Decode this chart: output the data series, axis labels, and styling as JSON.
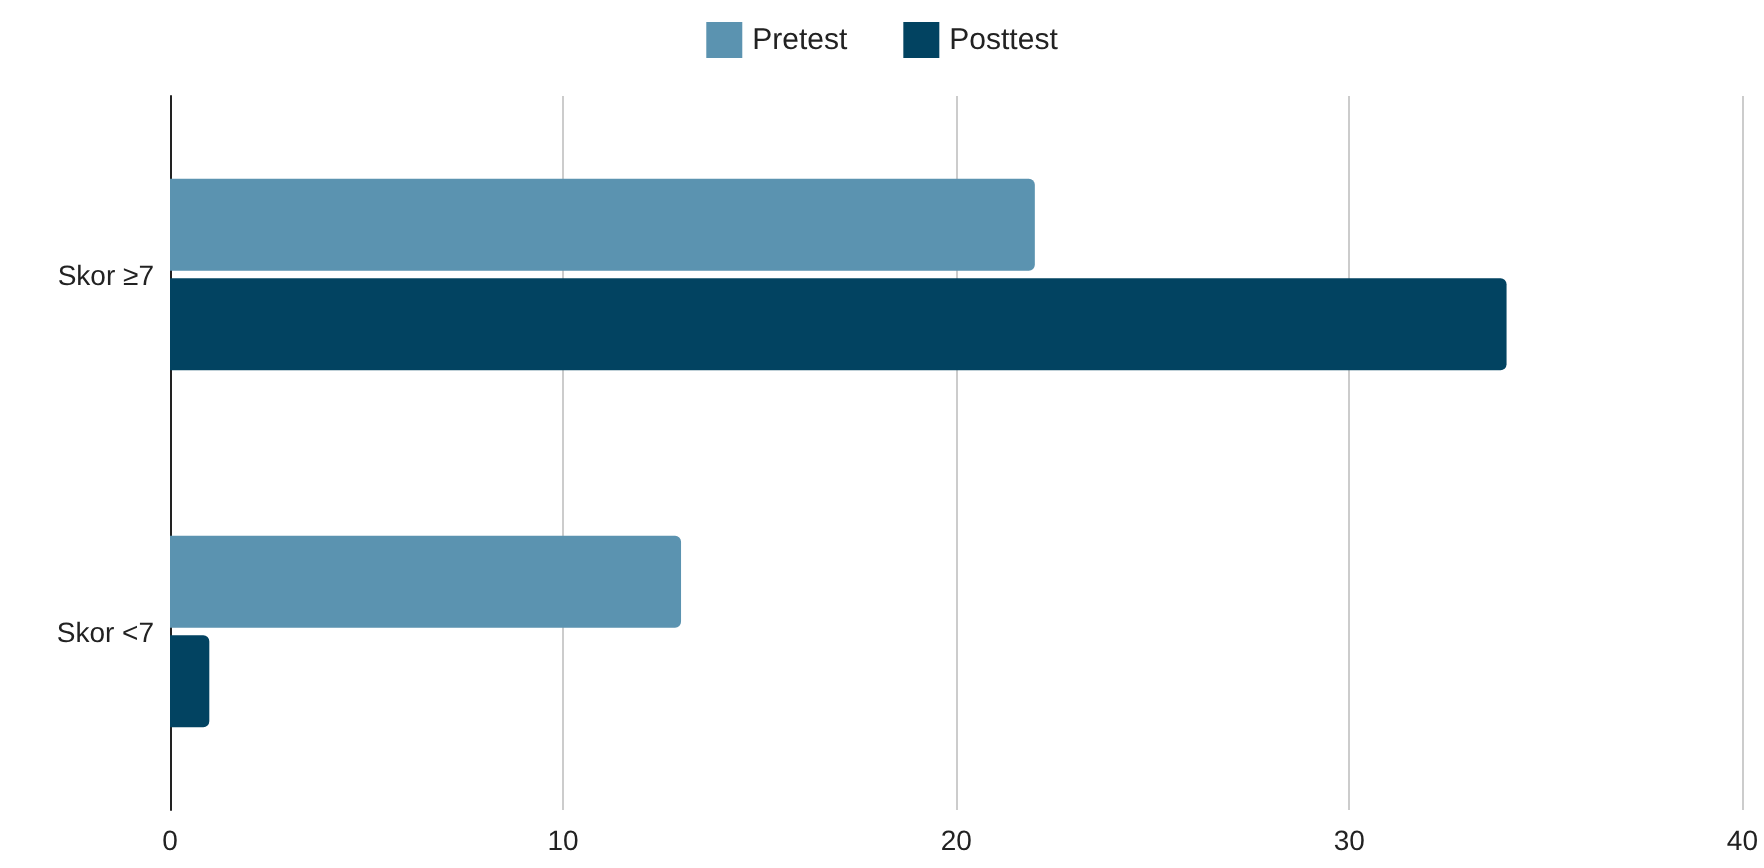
{
  "chart_data": {
    "type": "bar",
    "orientation": "horizontal",
    "categories": [
      "Skor ≥7",
      "Skor <7"
    ],
    "series": [
      {
        "name": "Pretest",
        "color": "#5b93b0",
        "values": [
          22,
          13
        ]
      },
      {
        "name": "Posttest",
        "color": "#024361",
        "values": [
          34,
          1
        ]
      }
    ],
    "xlim": [
      0,
      40
    ],
    "xticks": [
      0,
      10,
      20,
      30,
      40
    ],
    "grid": "x",
    "legend": "top"
  }
}
